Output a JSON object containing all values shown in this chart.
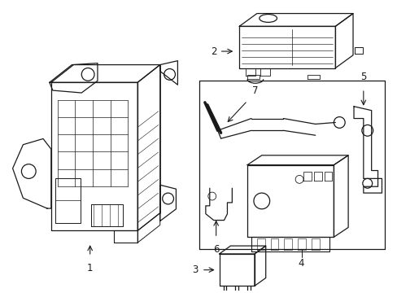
{
  "bg_color": "#ffffff",
  "line_color": "#1a1a1a",
  "lw": 0.9,
  "fig_width": 4.89,
  "fig_height": 3.6,
  "dpi": 100
}
